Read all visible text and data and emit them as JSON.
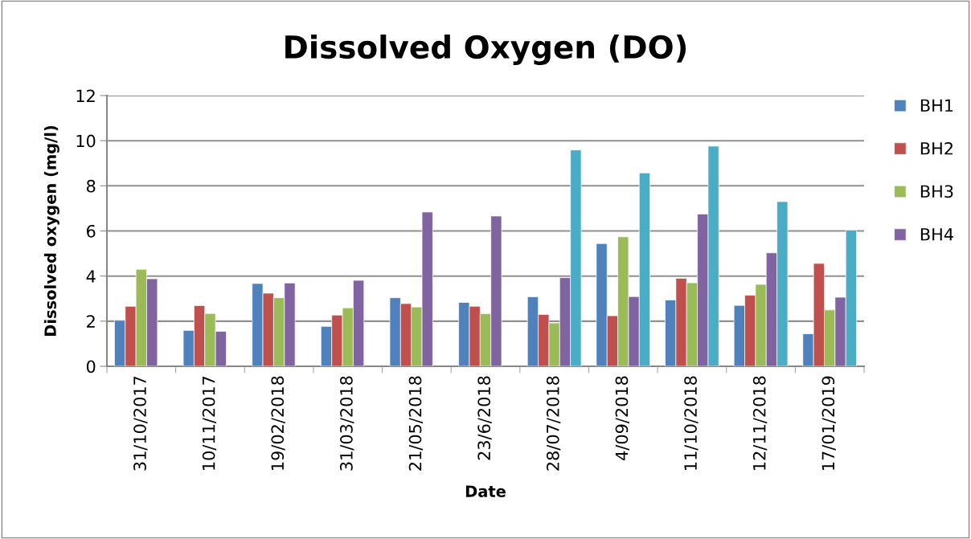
{
  "chart_data": {
    "type": "bar",
    "title": "Dissolved Oxygen (DO)",
    "xlabel": "Date",
    "ylabel": "Dissolved oxygen (mg/l)",
    "categories": [
      "31/10/2017",
      "10/11/2017",
      "19/02/2018",
      "31/03/2018",
      "21/05/2018",
      "23/6/2018",
      "28/07/2018",
      "4/09/2018",
      "11/10/2018",
      "12/11/2018",
      "17/01/2019"
    ],
    "series": [
      {
        "name": "BH1",
        "color": "#4f81bd",
        "values": [
          2.04,
          1.59,
          3.67,
          1.77,
          3.04,
          2.83,
          3.08,
          5.44,
          2.94,
          2.7,
          1.44
        ]
      },
      {
        "name": "BH2",
        "color": "#c0504d",
        "values": [
          2.66,
          2.69,
          3.24,
          2.27,
          2.78,
          2.66,
          2.3,
          2.24,
          3.9,
          3.15,
          4.56
        ]
      },
      {
        "name": "BH3",
        "color": "#9bbb59",
        "values": [
          4.3,
          2.34,
          3.04,
          2.59,
          2.63,
          2.33,
          1.92,
          5.74,
          3.7,
          3.63,
          2.5
        ]
      },
      {
        "name": "BH4",
        "color": "#8064a2",
        "values": [
          3.88,
          1.55,
          3.69,
          3.81,
          6.84,
          6.66,
          3.93,
          3.09,
          6.75,
          5.03,
          3.06
        ]
      },
      {
        "color": "#4bacc6",
        "values": [
          null,
          null,
          null,
          null,
          null,
          null,
          9.59,
          8.57,
          9.76,
          7.3,
          6.04
        ]
      }
    ],
    "ylim": [
      0,
      12
    ],
    "yticks": [
      0,
      2,
      4,
      6,
      8,
      10,
      12
    ],
    "grid": "y",
    "legend": "right"
  }
}
